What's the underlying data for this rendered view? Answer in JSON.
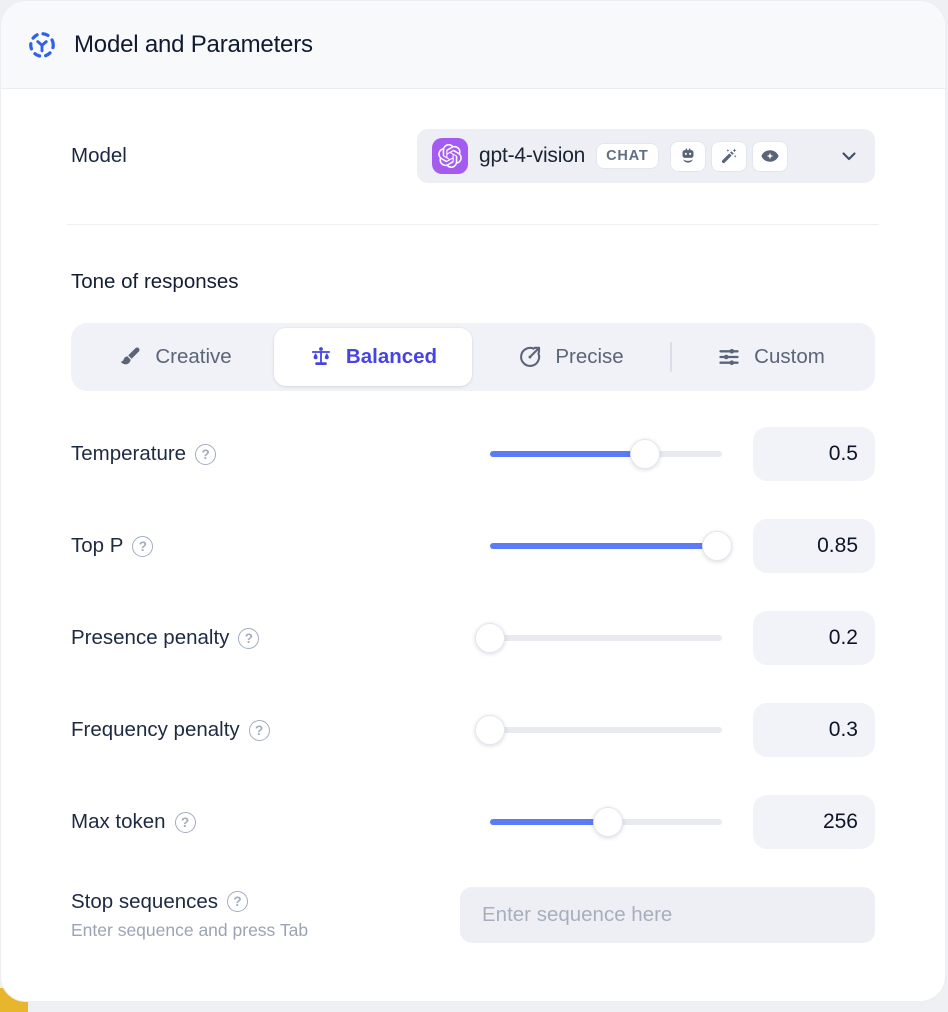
{
  "header": {
    "title": "Model and Parameters"
  },
  "icons": {
    "header": "model-hub-icon",
    "provider": "openai-logo",
    "chevron": "chevron-down-icon"
  },
  "model_row": {
    "label": "Model",
    "select": {
      "value": "gpt-4-vision",
      "type_badge": "CHAT",
      "provider_icon": "openai-logo",
      "capability_icons": [
        "robot-icon",
        "magic-wand-icon",
        "vision-eye-icon"
      ]
    }
  },
  "tone": {
    "heading": "Tone of responses",
    "tabs": [
      {
        "label": "Creative",
        "icon": "paintbrush-icon",
        "selected": false
      },
      {
        "label": "Balanced",
        "icon": "balance-scale-icon",
        "selected": true
      },
      {
        "label": "Precise",
        "icon": "target-icon",
        "selected": false
      },
      {
        "label": "Custom",
        "icon": "sliders-icon",
        "selected": false
      }
    ]
  },
  "parameters": [
    {
      "label": "Temperature",
      "value": "0.5",
      "fill_percent": 67
    },
    {
      "label": "Top P",
      "value": "0.85",
      "fill_percent": 98
    },
    {
      "label": "Presence penalty",
      "value": "0.2",
      "fill_percent": 0
    },
    {
      "label": "Frequency penalty",
      "value": "0.3",
      "fill_percent": 0
    },
    {
      "label": "Max token",
      "value": "256",
      "fill_percent": 51
    }
  ],
  "stop_sequences": {
    "label": "Stop sequences",
    "hint": "Enter sequence and press Tab",
    "placeholder": "Enter sequence here"
  },
  "colors": {
    "accent_blue": "#5d7bf7",
    "selected_tab_text": "#4644e2",
    "header_icon_blue": "#2f62e9",
    "provider_purple": "#a55bf2",
    "corner_accent_yellow": "#e8b62c"
  }
}
